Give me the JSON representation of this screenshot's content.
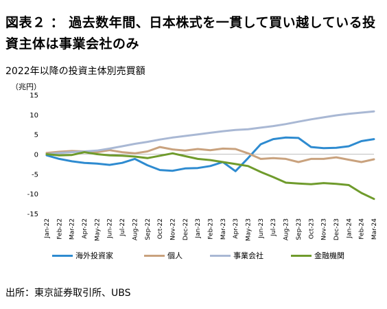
{
  "header": {
    "title": "図表２ ： 過去数年間、日本株式を一貫して買い越している投資主体は事業会社のみ",
    "subtitle": "2022年以降の投資主体別売買額",
    "unit": "（兆円）"
  },
  "footer": {
    "source": "出所：東京証券取引所、UBS"
  },
  "colors": {
    "axis": "#bfbfbf",
    "text": "#000000"
  },
  "chart_data": {
    "type": "line",
    "title": "2022年以降の投資主体別売買額",
    "ylabel": "（兆円）",
    "xlabel": "",
    "ylim": [
      -15,
      15
    ],
    "yticks": [
      15,
      10,
      5,
      0,
      -5,
      -10,
      -15
    ],
    "grid": false,
    "legend_position": "bottom",
    "categories": [
      "Jan-22",
      "Feb-22",
      "Mar-22",
      "Apr-22",
      "May-22",
      "Jun-22",
      "Jul-22",
      "Aug-22",
      "Sep-22",
      "Oct-22",
      "Nov-22",
      "Dec-22",
      "Jan-23",
      "Feb-23",
      "Mar-23",
      "Apr-23",
      "May-23",
      "Jun-23",
      "Jul-23",
      "Aug-23",
      "Sep-23",
      "Oct-23",
      "Nov-23",
      "Dec-23",
      "Jan-24",
      "Feb-24",
      "Mar-24"
    ],
    "series": [
      {
        "name": "海外投資家",
        "color": "#2e8bd0",
        "values": [
          -0.3,
          -1.2,
          -1.8,
          -2.2,
          -2.4,
          -2.7,
          -2.2,
          -1.2,
          -2.8,
          -4.0,
          -4.2,
          -3.6,
          -3.5,
          -3.0,
          -2.0,
          -4.3,
          -1.0,
          2.5,
          3.8,
          4.2,
          4.1,
          1.8,
          1.5,
          1.6,
          2.0,
          3.3,
          3.8
        ]
      },
      {
        "name": "個人",
        "color": "#c9a27e",
        "values": [
          0.3,
          0.6,
          0.8,
          0.7,
          0.5,
          1.0,
          0.5,
          0.2,
          0.7,
          1.8,
          1.2,
          0.9,
          1.3,
          1.0,
          1.4,
          1.3,
          0.2,
          -1.2,
          -1.0,
          -1.2,
          -2.0,
          -1.2,
          -1.2,
          -0.8,
          -1.4,
          -2.0,
          -1.3
        ]
      },
      {
        "name": "事業会社",
        "color": "#a9b8d4",
        "values": [
          0.0,
          0.3,
          0.5,
          0.7,
          0.9,
          1.4,
          2.0,
          2.6,
          3.1,
          3.7,
          4.2,
          4.6,
          5.0,
          5.4,
          5.8,
          6.1,
          6.3,
          6.7,
          7.1,
          7.6,
          8.2,
          8.8,
          9.3,
          9.8,
          10.2,
          10.5,
          10.8
        ]
      },
      {
        "name": "金融機関",
        "color": "#6f9b2c",
        "values": [
          0.0,
          -0.3,
          -0.2,
          0.5,
          0.0,
          -0.3,
          -0.4,
          -0.6,
          -1.0,
          -0.4,
          0.2,
          -0.5,
          -1.2,
          -1.5,
          -2.0,
          -2.5,
          -3.0,
          -4.5,
          -5.8,
          -7.2,
          -7.4,
          -7.6,
          -7.3,
          -7.5,
          -7.8,
          -9.8,
          -11.3
        ]
      }
    ]
  }
}
